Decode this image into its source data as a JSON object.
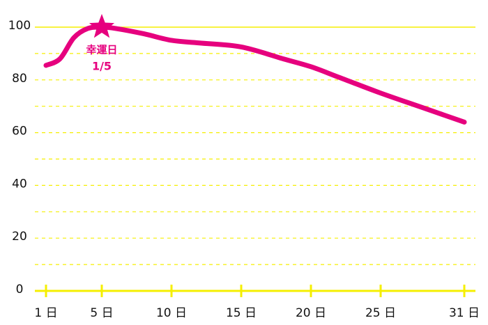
{
  "chart_data": {
    "type": "line",
    "x": [
      1,
      2,
      3,
      4,
      5,
      6,
      8,
      10,
      12,
      15,
      18,
      20,
      22,
      25,
      28,
      31
    ],
    "series": [
      {
        "color": "#e6007e",
        "values": [
          85.5,
          88,
          96,
          99.5,
          100,
          99.5,
          97.5,
          95,
          94,
          92.5,
          88,
          85,
          81,
          75,
          69.5,
          64
        ]
      }
    ],
    "xlim": [
      1,
      31
    ],
    "xticks": [
      {
        "value": 1,
        "label": "1 日"
      },
      {
        "value": 5,
        "label": "5 日"
      },
      {
        "value": 10,
        "label": "10 日"
      },
      {
        "value": 15,
        "label": "15 日"
      },
      {
        "value": 20,
        "label": "20 日"
      },
      {
        "value": 25,
        "label": "25 日"
      },
      {
        "value": 31,
        "label": "31 日"
      }
    ],
    "ylim": [
      0,
      100
    ],
    "yticks": [
      0,
      20,
      40,
      60,
      80,
      100
    ],
    "minor_yticks": [
      10,
      30,
      50,
      70,
      90
    ],
    "grid": true,
    "grid_color": "#f5ef00",
    "annotation": {
      "x": 5,
      "y": 100,
      "label": "幸運日",
      "sublabel": "1/5"
    }
  }
}
